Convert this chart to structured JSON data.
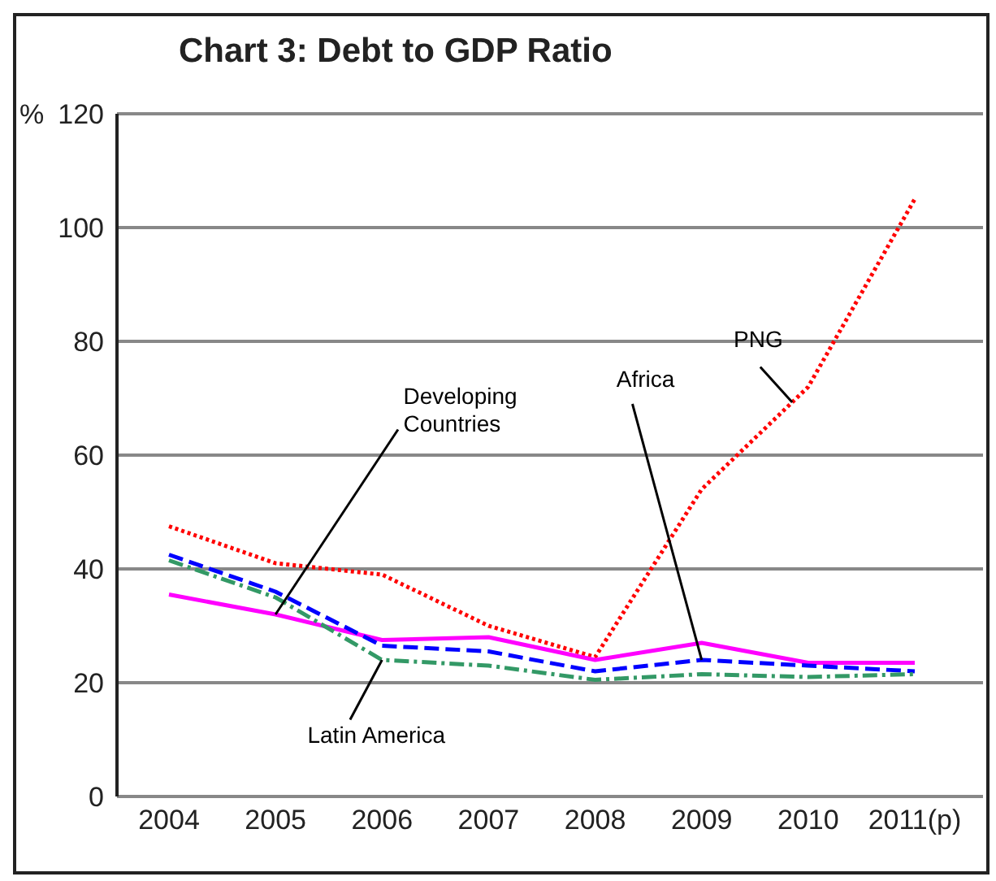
{
  "chart_data": {
    "type": "line",
    "title": "Chart 3: Debt to GDP Ratio",
    "ylabel": "%",
    "categories": [
      "2004",
      "2005",
      "2006",
      "2007",
      "2008",
      "2009",
      "2010",
      "2011(p)"
    ],
    "series": [
      {
        "name": "PNG",
        "color": "#ff0000",
        "line_style": "dotted",
        "values": [
          47.5,
          41,
          39,
          30,
          24.5,
          54,
          72,
          105
        ]
      },
      {
        "name": "Developing Countries",
        "color": "#ff00ff",
        "line_style": "solid",
        "values": [
          35.5,
          32,
          27.5,
          28,
          24,
          27,
          23.5,
          23.5
        ]
      },
      {
        "name": "Africa",
        "color": "#0000ff",
        "line_style": "dashed",
        "values": [
          42.5,
          36,
          26.5,
          25.5,
          22,
          24,
          23,
          22
        ]
      },
      {
        "name": "Latin America",
        "color": "#339966",
        "line_style": "dashdot",
        "values": [
          41.5,
          35,
          24,
          23,
          20.5,
          21.5,
          21,
          21.5
        ]
      }
    ],
    "ylim": [
      0,
      120
    ],
    "yticks": [
      0,
      20,
      40,
      60,
      80,
      100,
      120
    ],
    "grid": "y",
    "marker": "none"
  }
}
